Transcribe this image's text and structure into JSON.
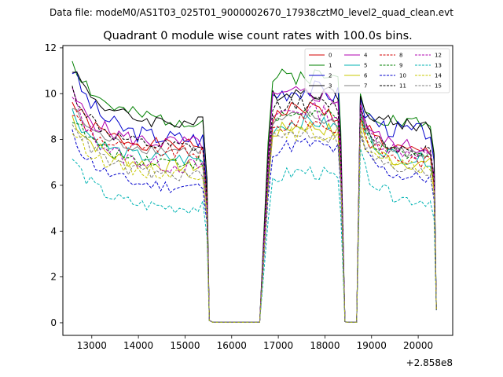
{
  "chart_data": {
    "type": "line",
    "suptitle": "Data file: modeM0/AS1T03_025T01_9000002670_17938cztM0_level2_quad_clean.evt",
    "title": "Quadrant 0 module wise count rates with 100.0s bins.",
    "xlabel": "",
    "ylabel": "",
    "x_offset_label": "+2.858e8",
    "xlim": [
      12380,
      20740
    ],
    "ylim": [
      -0.55,
      12.1
    ],
    "xticks": [
      13000,
      14000,
      15000,
      16000,
      17000,
      18000,
      19000,
      20000
    ],
    "xtick_labels": [
      "13000",
      "14000",
      "15000",
      "16000",
      "17000",
      "18000",
      "19000",
      "20000"
    ],
    "yticks": [
      0,
      2,
      4,
      6,
      8,
      10,
      12
    ],
    "ytick_labels": [
      "0",
      "2",
      "4",
      "6",
      "8",
      "10",
      "12"
    ],
    "legend_position": "upper right",
    "segments": [
      {
        "start": 12580,
        "end": 15480
      },
      {
        "start": 15480,
        "end": 16680,
        "flat": true
      },
      {
        "start": 16680,
        "end": 18380
      },
      {
        "start": 18380,
        "end": 18700,
        "flat": true
      },
      {
        "start": 18700,
        "end": 20380
      }
    ],
    "series": [
      {
        "name": "0",
        "color": "#d40000",
        "dash": "solid",
        "start": 9.6,
        "base1": 7.7,
        "base2": 8.5,
        "base3": 7.4,
        "peak2": 9.4,
        "peak3": 9.6,
        "amp": 0.3,
        "seed": 1
      },
      {
        "name": "1",
        "color": "#008000",
        "dash": "solid",
        "start": 11.5,
        "base1": 8.8,
        "base2": 10.5,
        "base3": 8.7,
        "peak2": 10.8,
        "peak3": 10.0,
        "amp": 0.35,
        "seed": 2
      },
      {
        "name": "2",
        "color": "#0000cc",
        "dash": "solid",
        "start": 11.1,
        "base1": 8.0,
        "base2": 9.7,
        "base3": 8.3,
        "peak2": 10.2,
        "peak3": 9.8,
        "amp": 0.4,
        "seed": 3
      },
      {
        "name": "3",
        "color": "#000000",
        "dash": "solid",
        "start": 11.2,
        "base1": 8.7,
        "base2": 9.9,
        "base3": 8.6,
        "peak2": 10.1,
        "peak3": 9.9,
        "amp": 0.3,
        "seed": 4
      },
      {
        "name": "4",
        "color": "#b000b0",
        "dash": "solid",
        "start": 10.0,
        "base1": 7.8,
        "base2": 9.5,
        "base3": 7.6,
        "peak2": 10.0,
        "peak3": 9.5,
        "amp": 0.35,
        "seed": 5
      },
      {
        "name": "5",
        "color": "#00b3b3",
        "dash": "solid",
        "start": 9.2,
        "base1": 7.1,
        "base2": 8.2,
        "base3": 7.1,
        "peak2": 8.8,
        "peak3": 9.2,
        "amp": 0.3,
        "seed": 6
      },
      {
        "name": "6",
        "color": "#c8c800",
        "dash": "solid",
        "start": 9.0,
        "base1": 6.8,
        "base2": 8.0,
        "base3": 6.9,
        "peak2": 8.6,
        "peak3": 8.9,
        "amp": 0.3,
        "seed": 7
      },
      {
        "name": "7",
        "color": "#808080",
        "dash": "solid",
        "start": 9.4,
        "base1": 7.5,
        "base2": 8.3,
        "base3": 7.3,
        "peak2": 9.0,
        "peak3": 9.3,
        "amp": 0.25,
        "seed": 8
      },
      {
        "name": "8",
        "color": "#d40000",
        "dash": "dashed",
        "start": 9.2,
        "base1": 7.4,
        "base2": 8.0,
        "base3": 7.0,
        "peak2": 8.8,
        "peak3": 9.0,
        "amp": 0.3,
        "seed": 9
      },
      {
        "name": "9",
        "color": "#008000",
        "dash": "dashed",
        "start": 9.0,
        "base1": 7.0,
        "base2": 8.4,
        "base3": 7.2,
        "peak2": 9.2,
        "peak3": 9.1,
        "amp": 0.3,
        "seed": 10
      },
      {
        "name": "10",
        "color": "#0000cc",
        "dash": "dashed",
        "start": 8.2,
        "base1": 5.9,
        "base2": 7.3,
        "base3": 6.3,
        "peak2": 7.8,
        "peak3": 8.2,
        "amp": 0.3,
        "seed": 11
      },
      {
        "name": "11",
        "color": "#000000",
        "dash": "dashed",
        "start": 10.2,
        "base1": 7.6,
        "base2": 9.3,
        "base3": 7.5,
        "peak2": 9.6,
        "peak3": 9.4,
        "amp": 0.3,
        "seed": 12
      },
      {
        "name": "12",
        "color": "#b000b0",
        "dash": "dashed",
        "start": 9.8,
        "base1": 6.8,
        "base2": 8.8,
        "base3": 7.4,
        "peak2": 9.3,
        "peak3": 9.3,
        "amp": 0.35,
        "seed": 13
      },
      {
        "name": "13",
        "color": "#00b3b3",
        "dash": "dashed",
        "start": 7.2,
        "base1": 5.0,
        "base2": 5.9,
        "base3": 5.3,
        "peak2": 6.6,
        "peak3": 7.6,
        "amp": 0.3,
        "seed": 14
      },
      {
        "name": "14",
        "color": "#c8c800",
        "dash": "dashed",
        "start": 8.4,
        "base1": 6.5,
        "base2": 7.8,
        "base3": 6.7,
        "peak2": 8.3,
        "peak3": 8.5,
        "amp": 0.3,
        "seed": 15
      },
      {
        "name": "15",
        "color": "#808080",
        "dash": "dashed",
        "start": 8.9,
        "base1": 6.4,
        "base2": 7.7,
        "base3": 6.5,
        "peak2": 8.3,
        "peak3": 8.7,
        "amp": 0.3,
        "seed": 16
      }
    ]
  }
}
